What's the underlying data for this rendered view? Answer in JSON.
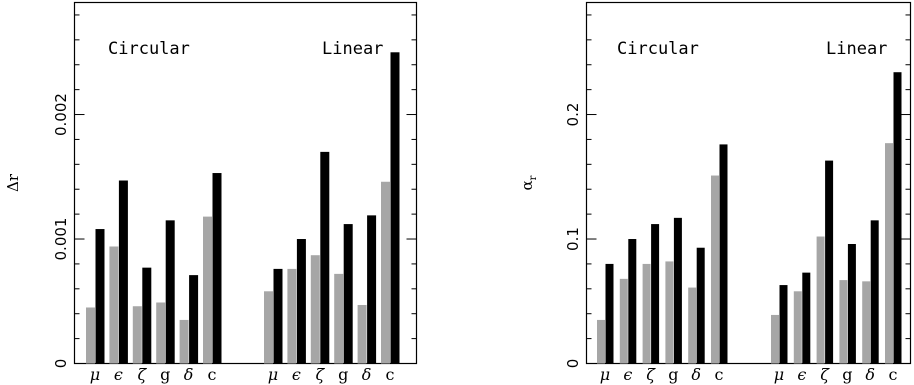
{
  "chart_data": [
    {
      "type": "bar",
      "ylabel": "Δr",
      "ylim": [
        0,
        0.0029
      ],
      "yticks": [
        0,
        0.001,
        0.002
      ],
      "ytick_labels": [
        "0",
        "0.001",
        "0.002"
      ],
      "groups": [
        {
          "label": "Circular",
          "categories": [
            "μ",
            "ϵ",
            "ζ",
            "g",
            "δ",
            "c"
          ],
          "series": [
            {
              "color": "#a6a6a6",
              "values": [
                0.00045,
                0.00094,
                0.00046,
                0.00049,
                0.00035,
                0.00118
              ]
            },
            {
              "color": "#000000",
              "values": [
                0.00108,
                0.00147,
                0.00077,
                0.00115,
                0.00071,
                0.00153
              ]
            }
          ]
        },
        {
          "label": "Linear",
          "categories": [
            "μ",
            "ϵ",
            "ζ",
            "g",
            "δ",
            "c"
          ],
          "series": [
            {
              "color": "#a6a6a6",
              "values": [
                0.00058,
                0.00076,
                0.00087,
                0.00072,
                0.00047,
                0.00146
              ]
            },
            {
              "color": "#000000",
              "values": [
                0.00076,
                0.001,
                0.0017,
                0.00112,
                0.00119,
                0.0025
              ]
            }
          ]
        }
      ]
    },
    {
      "type": "bar",
      "ylabel": "α",
      "ylabel_sub": "r",
      "ylim": [
        0,
        0.29
      ],
      "yticks": [
        0,
        0.1,
        0.2
      ],
      "ytick_labels": [
        "0",
        "0.1",
        "0.2"
      ],
      "groups": [
        {
          "label": "Circular",
          "categories": [
            "μ",
            "ϵ",
            "ζ",
            "g",
            "δ",
            "c"
          ],
          "series": [
            {
              "color": "#a6a6a6",
              "values": [
                0.035,
                0.068,
                0.08,
                0.082,
                0.061,
                0.151
              ]
            },
            {
              "color": "#000000",
              "values": [
                0.08,
                0.1,
                0.112,
                0.117,
                0.093,
                0.176
              ]
            }
          ]
        },
        {
          "label": "Linear",
          "categories": [
            "μ",
            "ϵ",
            "ζ",
            "g",
            "δ",
            "c"
          ],
          "series": [
            {
              "color": "#a6a6a6",
              "values": [
                0.039,
                0.058,
                0.102,
                0.067,
                0.066,
                0.177
              ]
            },
            {
              "color": "#000000",
              "values": [
                0.063,
                0.073,
                0.163,
                0.096,
                0.115,
                0.234
              ]
            }
          ]
        }
      ]
    }
  ]
}
